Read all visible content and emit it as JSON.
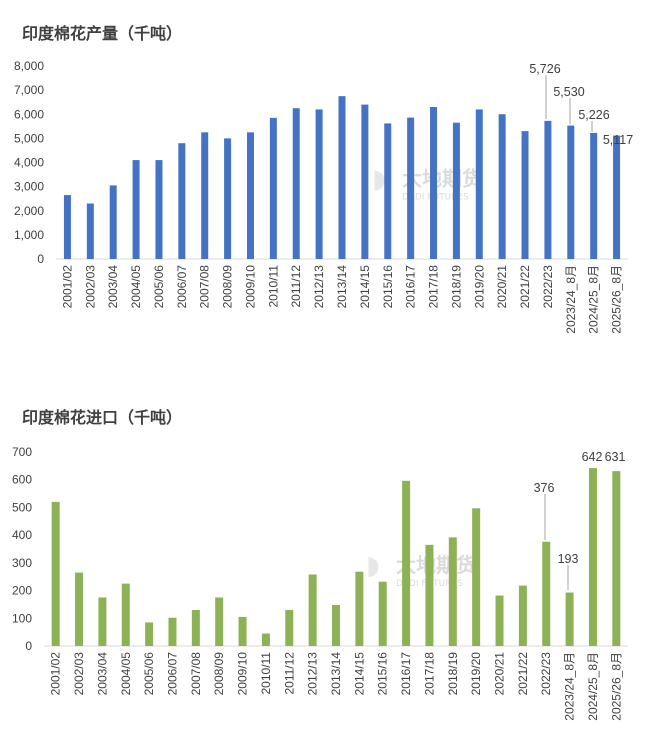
{
  "watermark": {
    "cn": "大地期货",
    "en": "DADI FUTURES"
  },
  "chart_data": [
    {
      "type": "bar",
      "title": "印度棉花产量（千吨）",
      "color": "#4472C4",
      "categories": [
        "2001/02",
        "2002/03",
        "2003/04",
        "2004/05",
        "2005/06",
        "2006/07",
        "2007/08",
        "2008/09",
        "2009/10",
        "2010/11",
        "2011/12",
        "2012/13",
        "2013/14",
        "2014/15",
        "2015/16",
        "2016/17",
        "2017/18",
        "2018/19",
        "2019/20",
        "2020/21",
        "2021/22",
        "2022/23",
        "2023/24_8月",
        "2024/25_8月",
        "2025/26_8月"
      ],
      "values": [
        2650,
        2300,
        3050,
        4100,
        4100,
        4800,
        5250,
        5000,
        5250,
        5850,
        6250,
        6200,
        6750,
        6400,
        5620,
        5860,
        6300,
        5650,
        6200,
        6000,
        5300,
        5726,
        5530,
        5226,
        5117
      ],
      "ylim": [
        0,
        8000
      ],
      "yticks": [
        "0",
        "1,000",
        "2,000",
        "3,000",
        "4,000",
        "5,000",
        "6,000",
        "7,000",
        "8,000"
      ],
      "data_labels": [
        {
          "index": 21,
          "text": "5,726"
        },
        {
          "index": 22,
          "text": "5,530"
        },
        {
          "index": 23,
          "text": "5,226"
        },
        {
          "index": 24,
          "text": "5,117"
        }
      ],
      "legend": "none",
      "grid": false
    },
    {
      "type": "bar",
      "title": "印度棉花进口（千吨）",
      "color": "#8DB255",
      "categories": [
        "2001/02",
        "2002/03",
        "2003/04",
        "2004/05",
        "2005/06",
        "2006/07",
        "2007/08",
        "2008/09",
        "2009/10",
        "2010/11",
        "2011/12",
        "2012/13",
        "2013/14",
        "2014/15",
        "2015/16",
        "2016/17",
        "2017/18",
        "2018/19",
        "2019/20",
        "2020/21",
        "2021/22",
        "2022/23",
        "2023/24_8月",
        "2024/25_8月",
        "2025/26_8月"
      ],
      "values": [
        520,
        265,
        175,
        225,
        85,
        102,
        130,
        175,
        105,
        45,
        130,
        258,
        148,
        268,
        232,
        596,
        365,
        392,
        497,
        182,
        218,
        376,
        193,
        642,
        631
      ],
      "ylim": [
        0,
        700
      ],
      "yticks": [
        "0",
        "100",
        "200",
        "300",
        "400",
        "500",
        "600",
        "700"
      ],
      "data_labels": [
        {
          "index": 21,
          "text": "376"
        },
        {
          "index": 22,
          "text": "193"
        },
        {
          "index": 23,
          "text": "642"
        },
        {
          "index": 24,
          "text": "631"
        }
      ],
      "legend": "none",
      "grid": false
    }
  ]
}
